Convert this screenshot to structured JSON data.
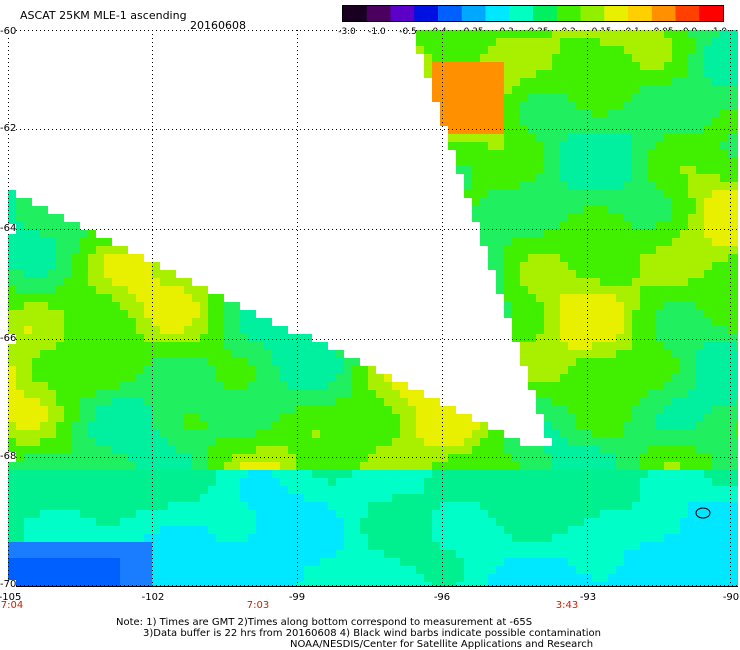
{
  "header": {
    "title": "ASCAT 25KM MLE-1 ascending",
    "date": "20160608"
  },
  "colorbar": {
    "labels": [
      "-3.0",
      "-1.0",
      "-0.5",
      "-0.4",
      "-0.35",
      "-0.3",
      "-0.25",
      "-0.2",
      "-0.15",
      "-0.1",
      "-0.05",
      "0.0",
      "1.0"
    ],
    "colors": [
      "#1a0020",
      "#4b0060",
      "#5a00c8",
      "#0010e0",
      "#0060ff",
      "#00a8ff",
      "#00e8ff",
      "#00ffc0",
      "#00f060",
      "#40f000",
      "#90f000",
      "#e8f000",
      "#ffd000",
      "#ff9000",
      "#ff4000",
      "#ff0000"
    ]
  },
  "axes": {
    "lat_labels": [
      "-60",
      "-62",
      "-64",
      "-66",
      "-68",
      "-70"
    ],
    "lon_labels": [
      "-105",
      "-102",
      "-99",
      "-96",
      "-93",
      "-90"
    ]
  },
  "time_labels": [
    "7:04",
    "7:03",
    "3:43"
  ],
  "notes": {
    "line1": "Note: 1) Times are GMT 2)Times along bottom correspond to measurement at -65S",
    "line2": "3)Data buffer is 22 hrs from 20160608 4) Black wind barbs indicate possible contamination",
    "line3": "NOAA/NESDIS/Center for Satellite Applications and Research"
  }
}
